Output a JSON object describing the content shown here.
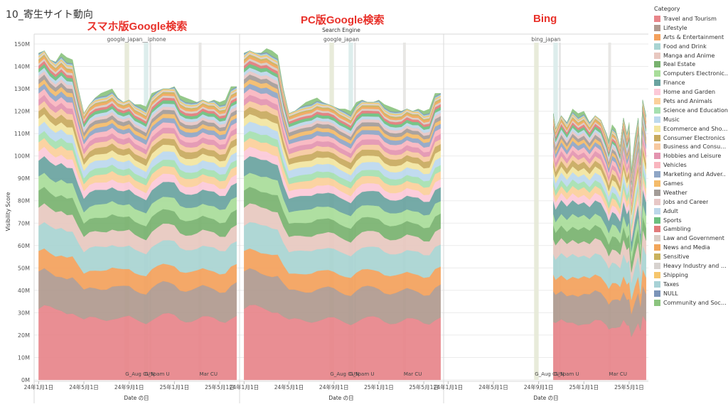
{
  "page": {
    "title": "10_寄生サイト動向"
  },
  "annotations": {
    "smartphone_google": "スマホ版Google検索",
    "pc_google": "PC版Google検索",
    "bing": "Bing"
  },
  "chart_data": {
    "type": "area",
    "stacked": true,
    "header": "Search Engine",
    "xlabel": "Date の日",
    "ylabel": "Visibility Score",
    "ylim": [
      0,
      150
    ],
    "y_ticks": [
      "0M",
      "10M",
      "20M",
      "30M",
      "40M",
      "50M",
      "60M",
      "70M",
      "80M",
      "90M",
      "100M",
      "110M",
      "120M",
      "130M",
      "140M",
      "150M"
    ],
    "x_ticks": [
      "24年1月1日",
      "24年5月1日",
      "24年9月1日",
      "25年1月1日",
      "25年5月1日"
    ],
    "x_tick_months": [
      0,
      4,
      8,
      12,
      16
    ],
    "x_range_months": [
      -0.4,
      17.7
    ],
    "grid": true,
    "legend_title": "Category",
    "legend_position": "right",
    "categories": [
      {
        "name": "Travel and Tourism",
        "color": "#e8858a"
      },
      {
        "name": "Lifestyle",
        "color": "#b09a8f"
      },
      {
        "name": "Arts & Entertainment",
        "color": "#f4a15c"
      },
      {
        "name": "Food and Drink",
        "color": "#a9d4d2"
      },
      {
        "name": "Manga and Anime",
        "color": "#e8c8c0"
      },
      {
        "name": "Real Estate",
        "color": "#79b26f"
      },
      {
        "name": "Computers Electronic..",
        "color": "#a9dd9a"
      },
      {
        "name": "Finance",
        "color": "#6aa3a0"
      },
      {
        "name": "Home and Garden",
        "color": "#fcc9d8"
      },
      {
        "name": "Pets and Animals",
        "color": "#fbd09b"
      },
      {
        "name": "Science and Education",
        "color": "#a6e0b0"
      },
      {
        "name": "Music",
        "color": "#bcd9ee"
      },
      {
        "name": "Ecommerce and Shop..",
        "color": "#f3e6a0"
      },
      {
        "name": "Consumer Electronics",
        "color": "#c8aa5e"
      },
      {
        "name": "Business and Consum..",
        "color": "#f7c9a0"
      },
      {
        "name": "Hobbies and Leisure",
        "color": "#e394b0"
      },
      {
        "name": "Vehicles",
        "color": "#f9b6bf"
      },
      {
        "name": "Marketing and Adver..",
        "color": "#8fa6c6"
      },
      {
        "name": "Games",
        "color": "#f4bb6a"
      },
      {
        "name": "Weather",
        "color": "#a39c98"
      },
      {
        "name": "Jobs and Career",
        "color": "#e7c7c6"
      },
      {
        "name": "Adult",
        "color": "#bcd7ea"
      },
      {
        "name": "Sports",
        "color": "#6cbf7e"
      },
      {
        "name": "Gambling",
        "color": "#e27a7a"
      },
      {
        "name": "Law and Government",
        "color": "#d9ccc4"
      },
      {
        "name": "News and Media",
        "color": "#f2a65a"
      },
      {
        "name": "Sensitive",
        "color": "#c9b25e"
      },
      {
        "name": "Heavy Industry and E..",
        "color": "#d7d2cf"
      },
      {
        "name": "Shipping",
        "color": "#f6c66c"
      },
      {
        "name": "Taxes",
        "color": "#a8d2d6"
      },
      {
        "name": "NULL",
        "color": "#7b94b8"
      },
      {
        "name": "Community and Socie..",
        "color": "#8cc47f"
      }
    ],
    "category_shares": [
      0.24,
      0.12,
      0.07,
      0.09,
      0.06,
      0.055,
      0.05,
      0.055,
      0.03,
      0.03,
      0.025,
      0.03,
      0.025,
      0.025,
      0.02,
      0.02,
      0.02,
      0.018,
      0.015,
      0.015,
      0.012,
      0.012,
      0.012,
      0.01,
      0.008,
      0.008,
      0.006,
      0.006,
      0.005,
      0.005,
      0.004,
      0.004
    ],
    "panels": [
      {
        "name": "google_japan__iphone",
        "months": [
          0,
          0.5,
          1,
          1.5,
          2,
          2.5,
          3,
          3.5,
          4,
          4.5,
          5,
          5.5,
          6,
          6.5,
          7,
          7.5,
          8,
          8.5,
          9,
          9.5,
          10,
          10.5,
          11,
          11.5,
          12,
          12.5,
          13,
          13.5,
          14,
          14.5,
          15,
          15.5,
          16,
          16.5,
          17,
          17.5
        ],
        "totals": [
          146,
          147,
          143,
          142,
          146,
          144,
          143,
          130,
          119,
          123,
          126,
          128,
          129,
          130,
          126,
          124,
          125,
          123,
          123,
          122,
          128,
          129,
          130,
          130,
          131,
          127,
          126,
          125,
          124,
          125,
          124,
          125,
          124,
          125,
          131,
          131
        ]
      },
      {
        "name": "google_japan",
        "months": [
          0,
          0.5,
          1,
          1.5,
          2,
          2.5,
          3,
          3.5,
          4,
          4.5,
          5,
          5.5,
          6,
          6.5,
          7,
          7.5,
          8,
          8.5,
          9,
          9.5,
          10,
          10.5,
          11,
          11.5,
          12,
          12.5,
          13,
          13.5,
          14,
          14.5,
          15,
          15.5,
          16,
          16.5,
          17,
          17.5
        ],
        "totals": [
          146,
          147,
          146,
          146,
          148,
          147,
          145,
          130,
          119,
          120,
          122,
          124,
          125,
          126,
          124,
          123,
          122,
          121,
          121,
          120,
          124,
          125,
          124,
          124,
          125,
          123,
          122,
          121,
          120,
          121,
          120,
          121,
          120,
          121,
          128,
          128
        ]
      },
      {
        "name": "bing_japan",
        "months": [
          9.3,
          9.5,
          10,
          10.5,
          11,
          11.5,
          12,
          12.5,
          13,
          13.5,
          14,
          14.2,
          14.5,
          14.8,
          15,
          15.2,
          15.5,
          15.8,
          16,
          16.2,
          16.5,
          16.8,
          17,
          17.2,
          17.5
        ],
        "totals": [
          119,
          112,
          118,
          115,
          121,
          119,
          120,
          115,
          118,
          116,
          110,
          107,
          114,
          112,
          108,
          104,
          117,
          110,
          115,
          94,
          108,
          117,
          96,
          125,
          118
        ]
      }
    ],
    "event_bands": [
      {
        "label": "G_Aug CU",
        "start_month": 7.6,
        "end_month": 8.0,
        "color": "#e5e9d6"
      },
      {
        "label": "G_N",
        "start_month": 9.3,
        "end_month": 9.7,
        "color": "#d9ebea"
      },
      {
        "label": "Spam U",
        "start_month": 9.8,
        "end_month": 9.95,
        "color": "#dedede"
      },
      {
        "label": "Mar CU",
        "start_month": 14.15,
        "end_month": 14.4,
        "color": "#e6e4e2"
      }
    ]
  }
}
